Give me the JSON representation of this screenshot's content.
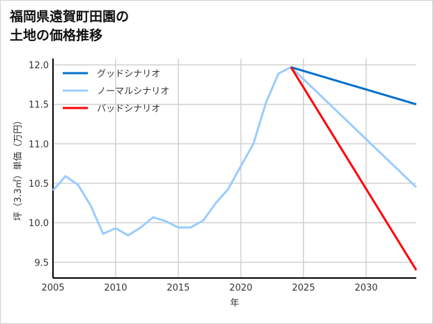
{
  "chart_data": {
    "type": "line",
    "title": [
      "福岡県遠賀町田園の",
      "土地の価格推移"
    ],
    "xlabel": "年",
    "ylabel": "坪（3.3㎡）単価（万円）",
    "xlim": [
      2005,
      2034
    ],
    "ylim": [
      9.3,
      12.08
    ],
    "xticks": [
      2005,
      2010,
      2015,
      2020,
      2025,
      2030
    ],
    "yticks": [
      9.5,
      10.0,
      10.5,
      11.0,
      11.5,
      12.0
    ],
    "grid": true,
    "legend_position": "top-left",
    "series": [
      {
        "name": "グッドシナリオ",
        "color": "#0070cc",
        "x": [
          2024,
          2034
        ],
        "y": [
          11.97,
          11.5
        ]
      },
      {
        "name": "ノーマルシナリオ",
        "color": "#99ccff",
        "x": [
          2005,
          2006,
          2007,
          2008,
          2009,
          2010,
          2011,
          2012,
          2013,
          2014,
          2015,
          2016,
          2017,
          2018,
          2019,
          2020,
          2021,
          2022,
          2023,
          2024,
          2034
        ],
        "y": [
          10.41,
          10.59,
          10.48,
          10.22,
          9.86,
          9.93,
          9.84,
          9.94,
          10.07,
          10.02,
          9.94,
          9.94,
          10.03,
          10.25,
          10.43,
          10.72,
          11.0,
          11.52,
          11.89,
          11.97,
          10.45
        ]
      },
      {
        "name": "バッドシナリオ",
        "color": "#ff0000",
        "x": [
          2024,
          2034
        ],
        "y": [
          11.97,
          9.4
        ]
      }
    ]
  }
}
